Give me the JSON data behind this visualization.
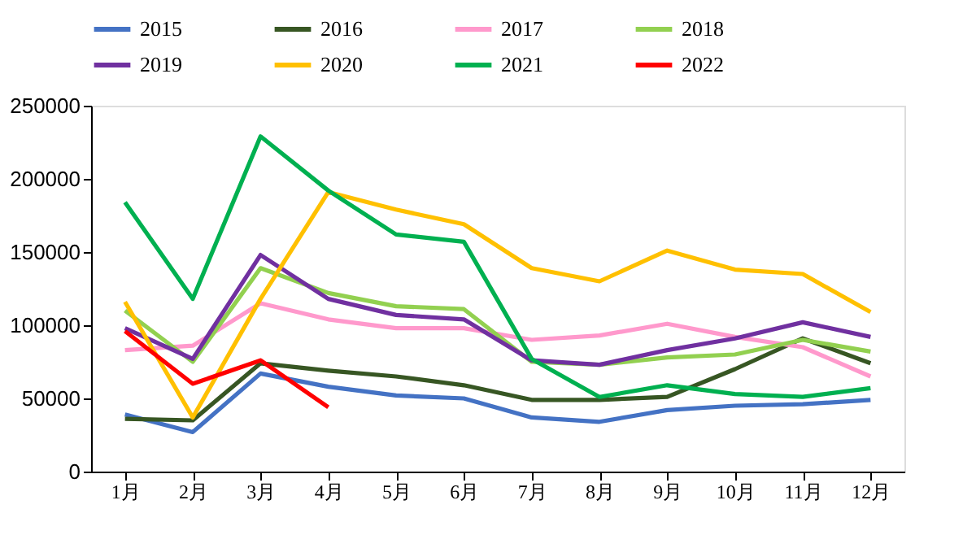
{
  "chart_data": {
    "type": "line",
    "categories": [
      "1月",
      "2月",
      "3月",
      "4月",
      "5月",
      "6月",
      "7月",
      "8月",
      "9月",
      "10月",
      "11月",
      "12月"
    ],
    "ylim": [
      0,
      250000
    ],
    "yticks": [
      0,
      50000,
      100000,
      150000,
      200000,
      250000
    ],
    "grid": false,
    "legend": "top",
    "marker": "none",
    "series": [
      {
        "name": "2015",
        "color": "#4472c4",
        "values": [
          39000,
          27000,
          67000,
          58000,
          52000,
          50000,
          37000,
          34000,
          42000,
          45000,
          46000,
          49000
        ]
      },
      {
        "name": "2016",
        "color": "#375623",
        "values": [
          36000,
          35000,
          74000,
          69000,
          65000,
          59000,
          49000,
          49000,
          51000,
          70000,
          91000,
          74000
        ]
      },
      {
        "name": "2017",
        "color": "#ff99cc",
        "values": [
          83000,
          86000,
          115000,
          104000,
          98000,
          98000,
          90000,
          93000,
          101000,
          92000,
          85000,
          65000
        ]
      },
      {
        "name": "2018",
        "color": "#92d050",
        "values": [
          110000,
          75000,
          139000,
          122000,
          113000,
          111000,
          75000,
          73000,
          78000,
          80000,
          90000,
          82000
        ]
      },
      {
        "name": "2019",
        "color": "#7030a0",
        "values": [
          98000,
          77000,
          148000,
          118000,
          107000,
          104000,
          76000,
          73000,
          83000,
          91000,
          102000,
          92000
        ]
      },
      {
        "name": "2020",
        "color": "#ffc000",
        "values": [
          116000,
          37000,
          118000,
          191000,
          179000,
          169000,
          139000,
          130000,
          151000,
          138000,
          135000,
          109000
        ]
      },
      {
        "name": "2021",
        "color": "#00b050",
        "values": [
          184000,
          118000,
          229000,
          192000,
          162000,
          157000,
          77000,
          51000,
          59000,
          53000,
          51000,
          57000
        ]
      },
      {
        "name": "2022",
        "color": "#ff0000",
        "values": [
          96000,
          60000,
          76000,
          44000,
          null,
          null,
          null,
          null,
          null,
          null,
          null,
          null
        ]
      }
    ]
  }
}
